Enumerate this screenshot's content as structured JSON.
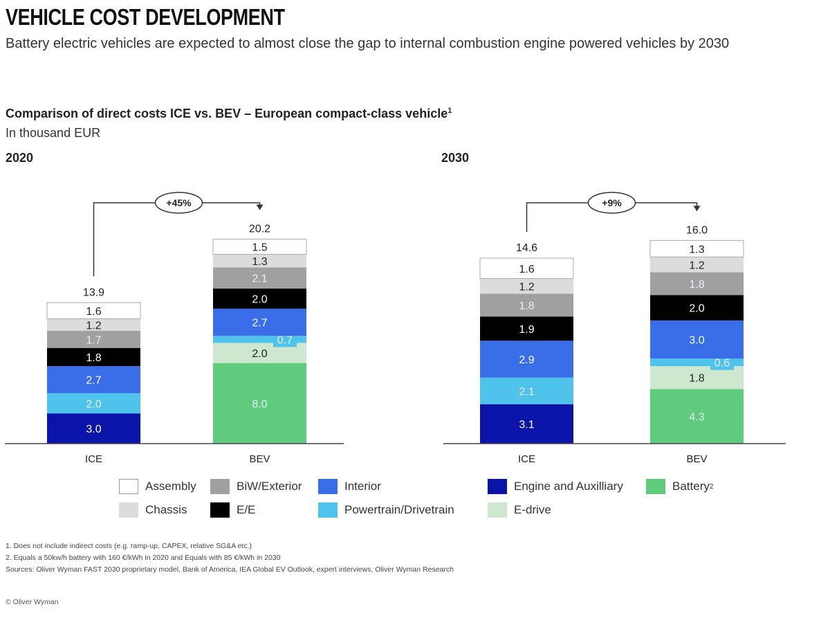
{
  "header": {
    "title": "VEHICLE COST DEVELOPMENT",
    "subtitle": "Battery electric vehicles are expected to almost close the gap to internal combustion engine powered vehicles by 2030"
  },
  "chart_data": {
    "type": "bar",
    "stacked": true,
    "title": "Comparison of direct costs ICE vs. BEV – European compact-class vehicle",
    "title_footnote": "1",
    "unit_label": "In thousand EUR",
    "categories_order_bottom_to_top": [
      "Engine and Auxilliary",
      "Battery",
      "E-drive",
      "Powertrain/Drivetrain",
      "Interior",
      "E/E",
      "BiW/Exterior",
      "Chassis",
      "Assembly"
    ],
    "colors": {
      "Assembly": "#ffffff",
      "Chassis": "#dcdcdc",
      "BiW/Exterior": "#a0a0a0",
      "E/E": "#000000",
      "Interior": "#3a6ee8",
      "Powertrain/Drivetrain": "#4fc3ec",
      "Engine and Auxilliary": "#0a14a8",
      "Battery": "#5fcb7c",
      "E-drive": "#cde8cf"
    },
    "panels": [
      {
        "year": "2020",
        "change_label": "+45%",
        "bars": [
          {
            "name": "ICE",
            "total": 13.9,
            "segments": [
              {
                "category": "Engine and Auxilliary",
                "value": 3.0
              },
              {
                "category": "Powertrain/Drivetrain",
                "value": 2.0
              },
              {
                "category": "Interior",
                "value": 2.7
              },
              {
                "category": "E/E",
                "value": 1.8
              },
              {
                "category": "BiW/Exterior",
                "value": 1.7
              },
              {
                "category": "Chassis",
                "value": 1.2
              },
              {
                "category": "Assembly",
                "value": 1.6
              }
            ]
          },
          {
            "name": "BEV",
            "total": 20.2,
            "segments": [
              {
                "category": "Battery",
                "value": 8.0
              },
              {
                "category": "E-drive",
                "value": 2.0
              },
              {
                "category": "Powertrain/Drivetrain",
                "value": 0.7
              },
              {
                "category": "Interior",
                "value": 2.7
              },
              {
                "category": "E/E",
                "value": 2.0
              },
              {
                "category": "BiW/Exterior",
                "value": 2.1
              },
              {
                "category": "Chassis",
                "value": 1.3
              },
              {
                "category": "Assembly",
                "value": 1.5
              }
            ]
          }
        ]
      },
      {
        "year": "2030",
        "change_label": "+9%",
        "bars": [
          {
            "name": "ICE",
            "total": 14.6,
            "segments": [
              {
                "category": "Engine and Auxilliary",
                "value": 3.1
              },
              {
                "category": "Powertrain/Drivetrain",
                "value": 2.1
              },
              {
                "category": "Interior",
                "value": 2.9
              },
              {
                "category": "E/E",
                "value": 1.9
              },
              {
                "category": "BiW/Exterior",
                "value": 1.8
              },
              {
                "category": "Chassis",
                "value": 1.2
              },
              {
                "category": "Assembly",
                "value": 1.6
              }
            ]
          },
          {
            "name": "BEV",
            "total": 16.0,
            "segments": [
              {
                "category": "Battery",
                "value": 4.3
              },
              {
                "category": "E-drive",
                "value": 1.8
              },
              {
                "category": "Powertrain/Drivetrain",
                "value": 0.6
              },
              {
                "category": "Interior",
                "value": 3.0
              },
              {
                "category": "E/E",
                "value": 2.0
              },
              {
                "category": "BiW/Exterior",
                "value": 1.8
              },
              {
                "category": "Chassis",
                "value": 1.2
              },
              {
                "category": "Assembly",
                "value": 1.3
              }
            ]
          }
        ]
      }
    ],
    "legend": [
      {
        "label": "Assembly",
        "sup": ""
      },
      {
        "label": "Chassis",
        "sup": ""
      },
      {
        "label": "BiW/Exterior",
        "sup": ""
      },
      {
        "label": "E/E",
        "sup": ""
      },
      {
        "label": "Interior",
        "sup": ""
      },
      {
        "label": "Powertrain/Drivetrain",
        "sup": ""
      },
      {
        "label": "Engine and Auxilliary",
        "sup": ""
      },
      {
        "label": "E-drive",
        "sup": ""
      },
      {
        "label": "Battery",
        "sup": "2"
      }
    ],
    "legend_position": "bottom"
  },
  "footnotes": [
    "1. Does not include indirect costs (e.g. ramp-up, CAPEX, relative SG&A etc.)",
    "2. Equals a 50kw/h battery with 160 €/kWh in 2020 and Equals with 85 €/kWh in 2030",
    "Sources: Oliver Wyman FAST 2030 proprietary model, Bank of America, IEA Global EV Outlook, expert interviews, Oliver Wyman Research"
  ],
  "copyright": "© Oliver Wyman"
}
